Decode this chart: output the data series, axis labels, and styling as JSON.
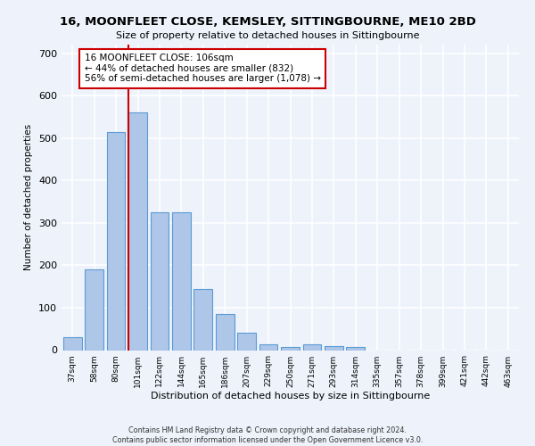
{
  "title1": "16, MOONFLEET CLOSE, KEMSLEY, SITTINGBOURNE, ME10 2BD",
  "title2": "Size of property relative to detached houses in Sittingbourne",
  "xlabel": "Distribution of detached houses by size in Sittingbourne",
  "ylabel": "Number of detached properties",
  "categories": [
    "37sqm",
    "58sqm",
    "80sqm",
    "101sqm",
    "122sqm",
    "144sqm",
    "165sqm",
    "186sqm",
    "207sqm",
    "229sqm",
    "250sqm",
    "271sqm",
    "293sqm",
    "314sqm",
    "335sqm",
    "357sqm",
    "378sqm",
    "399sqm",
    "421sqm",
    "442sqm",
    "463sqm"
  ],
  "values": [
    30,
    190,
    515,
    560,
    325,
    325,
    143,
    85,
    40,
    13,
    8,
    13,
    10,
    8,
    0,
    0,
    0,
    0,
    0,
    0,
    0
  ],
  "bar_color": "#aec6e8",
  "bar_edge_color": "#5b9bd5",
  "bar_linewidth": 0.8,
  "vline_color": "#cc0000",
  "annotation_text": "16 MOONFLEET CLOSE: 106sqm\n← 44% of detached houses are smaller (832)\n56% of semi-detached houses are larger (1,078) →",
  "annotation_box_color": "#ffffff",
  "annotation_box_edge": "#cc0000",
  "ylim": [
    0,
    720
  ],
  "yticks": [
    0,
    100,
    200,
    300,
    400,
    500,
    600,
    700
  ],
  "background_color": "#edf2fb",
  "grid_color": "#ffffff",
  "footer": "Contains HM Land Registry data © Crown copyright and database right 2024.\nContains public sector information licensed under the Open Government Licence v3.0."
}
